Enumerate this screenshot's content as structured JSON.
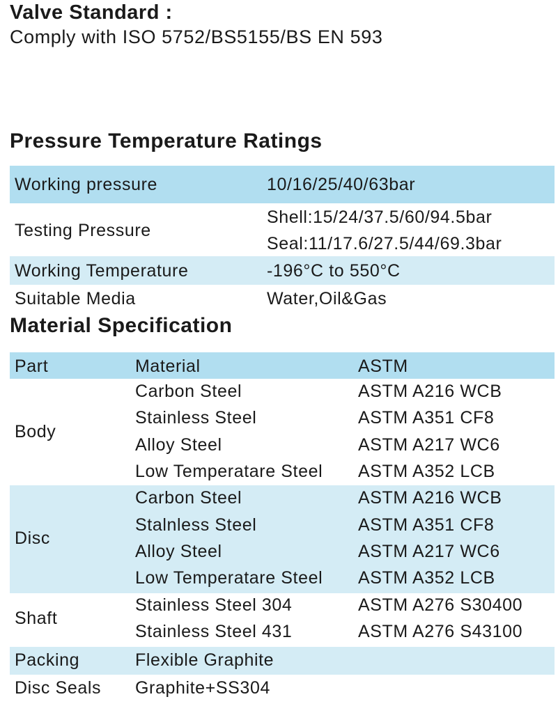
{
  "valve_standard": {
    "title": "Valve Standard :",
    "text": "Comply with ISO 5752/BS5155/BS EN 593"
  },
  "pressure_ratings": {
    "title": "Pressure Temperature Ratings",
    "rows": [
      {
        "label": "Working pressure",
        "values": [
          "10/16/25/40/63bar"
        ]
      },
      {
        "label": "Testing Pressure",
        "values": [
          "Shell:15/24/37.5/60/94.5bar",
          "Seal:11/17.6/27.5/44/69.3bar"
        ]
      },
      {
        "label": "Working Temperature",
        "values": [
          "-196°C to 550°C"
        ]
      },
      {
        "label": "Suitable Media",
        "values": [
          "Water,Oil&Gas"
        ]
      }
    ]
  },
  "material_spec": {
    "title": "Material Specification",
    "header": {
      "part": "Part",
      "material": "Material",
      "astm": "ASTM"
    },
    "groups": [
      {
        "part": "Body",
        "items": [
          {
            "material": "Carbon Steel",
            "astm": "ASTM A216 WCB"
          },
          {
            "material": "Stainless Steel",
            "astm": "ASTM A351 CF8"
          },
          {
            "material": "Alloy Steel",
            "astm": "ASTM A217 WC6"
          },
          {
            "material": "Low Temperatare Steel",
            "astm": "ASTM A352 LCB"
          }
        ]
      },
      {
        "part": "Disc",
        "items": [
          {
            "material": "Carbon Steel",
            "astm": "ASTM A216 WCB"
          },
          {
            "material": "Stalnless Steel",
            "astm": "ASTM A351 CF8"
          },
          {
            "material": "Alloy Steel",
            "astm": "ASTM A217 WC6"
          },
          {
            "material": "Low Temperatare Steel",
            "astm": "ASTM A352 LCB"
          }
        ]
      },
      {
        "part": "Shaft",
        "items": [
          {
            "material": "Stainless Steel 304",
            "astm": "ASTM A276 S30400"
          },
          {
            "material": "Stainless Steel 431",
            "astm": "ASTM A276 S43100"
          }
        ]
      },
      {
        "part": "Packing",
        "items": [
          {
            "material": "Flexible Graphite",
            "astm": ""
          }
        ]
      },
      {
        "part": "Disc Seals",
        "items": [
          {
            "material": "Graphite+SS304",
            "astm": ""
          }
        ]
      }
    ]
  }
}
